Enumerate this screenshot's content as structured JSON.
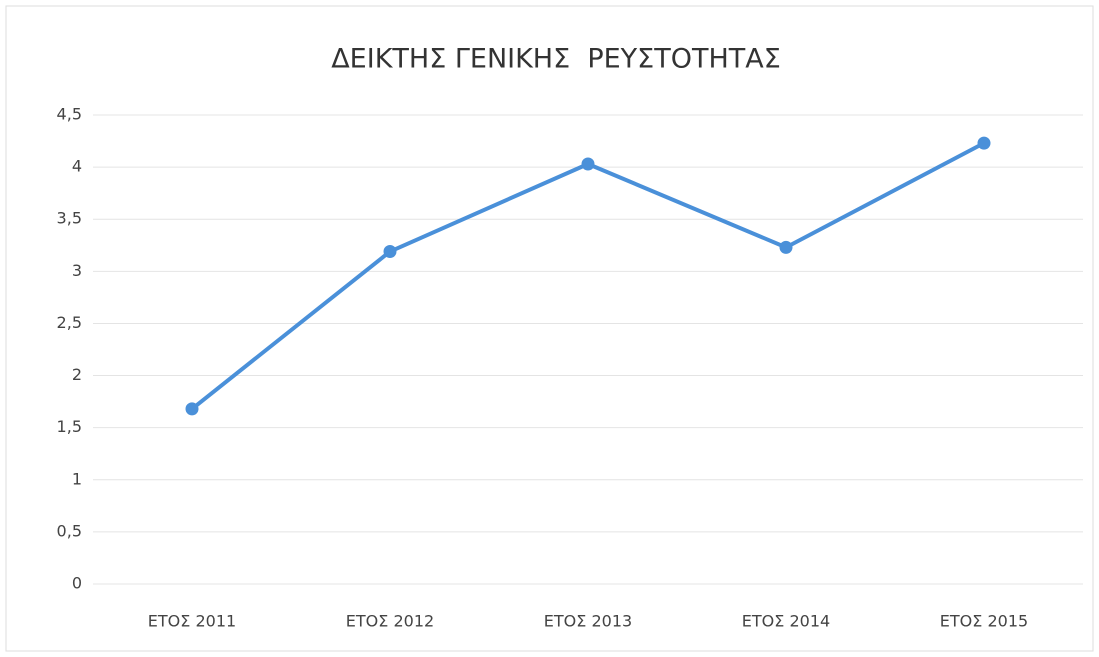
{
  "chart_data": {
    "type": "line",
    "title": "ΔΕΙΚΤΗΣ ΓΕΝΙΚΗΣ  ΡΕΥΣΤΟΤΗΤΑΣ",
    "categories": [
      "ΕΤΟΣ 2011",
      "ΕΤΟΣ 2012",
      "ΕΤΟΣ 2013",
      "ΕΤΟΣ 2014",
      "ΕΤΟΣ 2015"
    ],
    "values": [
      1.68,
      3.19,
      4.03,
      3.23,
      4.23
    ],
    "color": "#4a90d9",
    "ylim": [
      0,
      4.5
    ],
    "yticks": [
      0,
      {
        "value": 0.5,
        "label": "0,5"
      },
      1,
      {
        "value": 1.5,
        "label": "1,5"
      },
      2,
      {
        "value": 2.5,
        "label": "2,5"
      },
      3,
      {
        "value": 3.5,
        "label": "3,5"
      },
      4,
      {
        "value": 4.5,
        "label": "4,5"
      }
    ],
    "grid": true
  }
}
